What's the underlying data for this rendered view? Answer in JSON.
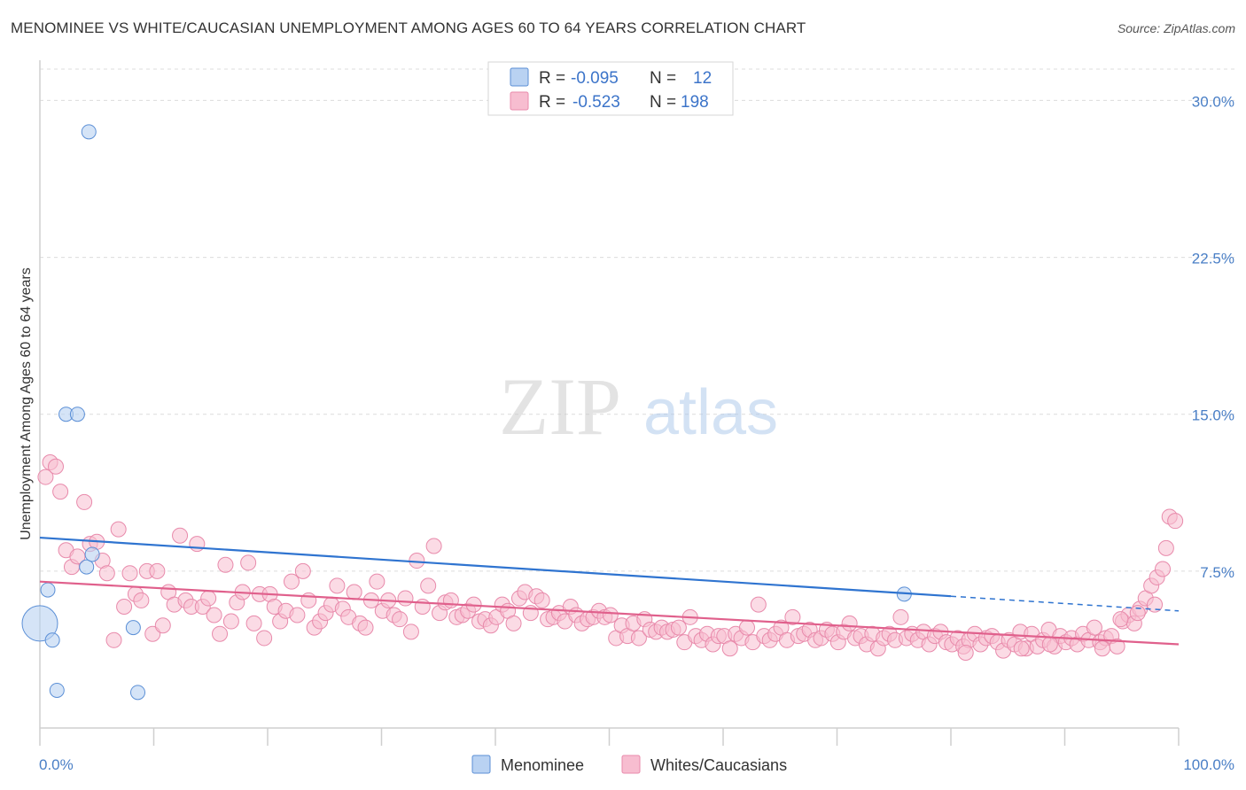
{
  "header": {
    "title": "MENOMINEE VS WHITE/CAUCASIAN UNEMPLOYMENT AMONG AGES 60 TO 64 YEARS CORRELATION CHART",
    "source": "Source: ZipAtlas.com"
  },
  "watermark": {
    "zip": "ZIP",
    "atlas": "atlas"
  },
  "legend": {
    "r_label": "R =",
    "n_label": "N =",
    "rows": [
      {
        "r": "-0.095",
        "n": "12"
      },
      {
        "r": "-0.523",
        "n": "198"
      }
    ]
  },
  "colors": {
    "menominee_fill": "#b9d2f2",
    "menominee_stroke": "#5b8fd6",
    "menominee_line": "#2f74d0",
    "white_fill": "#f7bdd0",
    "white_stroke": "#e88aab",
    "white_line": "#e0608c",
    "tick_text": "#4a7fc6"
  },
  "chart_data": {
    "type": "scatter",
    "title": "MENOMINEE VS WHITE/CAUCASIAN UNEMPLOYMENT AMONG AGES 60 TO 64 YEARS CORRELATION CHART",
    "xlabel": "",
    "ylabel": "Unemployment Among Ages 60 to 64 years",
    "xlim": [
      0,
      100
    ],
    "ylim": [
      0,
      31.5
    ],
    "x_tick_labels": [
      "0.0%",
      "100.0%"
    ],
    "y_ticks": [
      7.5,
      15.0,
      22.5,
      30.0
    ],
    "y_tick_labels": [
      "7.5%",
      "15.0%",
      "22.5%",
      "30.0%"
    ],
    "grid": true,
    "legend_position": "top-center",
    "series": [
      {
        "name": "Menominee",
        "r": -0.095,
        "n": 12,
        "trend": {
          "x": [
            0,
            80
          ],
          "y": [
            9.1,
            6.3
          ],
          "dashed_to": [
            100,
            5.6
          ]
        },
        "points": [
          [
            0.0,
            5.0,
            2.5
          ],
          [
            0.7,
            6.6,
            1
          ],
          [
            1.1,
            4.2,
            1
          ],
          [
            1.5,
            1.8,
            1
          ],
          [
            2.3,
            15.0,
            1
          ],
          [
            3.3,
            15.0,
            1
          ],
          [
            4.1,
            7.7,
            1
          ],
          [
            4.6,
            8.3,
            1
          ],
          [
            4.3,
            28.5,
            1
          ],
          [
            8.2,
            4.8,
            1
          ],
          [
            8.6,
            1.7,
            1
          ],
          [
            75.9,
            6.4,
            1
          ]
        ]
      },
      {
        "name": "Whites/Caucasians",
        "r": -0.523,
        "n": 198,
        "trend": {
          "x": [
            0,
            100
          ],
          "y": [
            7.0,
            4.0
          ]
        },
        "points": [
          [
            0.5,
            12.0
          ],
          [
            0.9,
            12.7
          ],
          [
            1.4,
            12.5
          ],
          [
            1.8,
            11.3
          ],
          [
            2.3,
            8.5
          ],
          [
            2.8,
            7.7
          ],
          [
            3.3,
            8.2
          ],
          [
            3.9,
            10.8
          ],
          [
            4.4,
            8.8
          ],
          [
            5.0,
            8.9
          ],
          [
            5.5,
            8.0
          ],
          [
            5.9,
            7.4
          ],
          [
            6.5,
            4.2
          ],
          [
            6.9,
            9.5
          ],
          [
            7.4,
            5.8
          ],
          [
            7.9,
            7.4
          ],
          [
            8.4,
            6.4
          ],
          [
            8.9,
            6.1
          ],
          [
            9.4,
            7.5
          ],
          [
            9.9,
            4.5
          ],
          [
            10.3,
            7.5
          ],
          [
            10.8,
            4.9
          ],
          [
            11.3,
            6.5
          ],
          [
            11.8,
            5.9
          ],
          [
            12.3,
            9.2
          ],
          [
            12.8,
            6.1
          ],
          [
            13.3,
            5.8
          ],
          [
            13.8,
            8.8
          ],
          [
            14.3,
            5.8
          ],
          [
            14.8,
            6.2
          ],
          [
            15.3,
            5.4
          ],
          [
            15.8,
            4.5
          ],
          [
            16.3,
            7.8
          ],
          [
            16.8,
            5.1
          ],
          [
            17.3,
            6.0
          ],
          [
            17.8,
            6.5
          ],
          [
            18.3,
            7.9
          ],
          [
            18.8,
            5.0
          ],
          [
            19.3,
            6.4
          ],
          [
            19.7,
            4.3
          ],
          [
            20.2,
            6.4
          ],
          [
            20.6,
            5.8
          ],
          [
            21.1,
            5.1
          ],
          [
            21.6,
            5.6
          ],
          [
            22.1,
            7.0
          ],
          [
            22.6,
            5.4
          ],
          [
            23.1,
            7.5
          ],
          [
            23.6,
            6.1
          ],
          [
            24.1,
            4.8
          ],
          [
            24.6,
            5.1
          ],
          [
            25.1,
            5.5
          ],
          [
            25.6,
            5.9
          ],
          [
            26.1,
            6.8
          ],
          [
            26.6,
            5.7
          ],
          [
            27.1,
            5.3
          ],
          [
            27.6,
            6.5
          ],
          [
            28.1,
            5.0
          ],
          [
            28.6,
            4.8
          ],
          [
            29.1,
            6.1
          ],
          [
            29.6,
            7.0
          ],
          [
            30.1,
            5.6
          ],
          [
            30.6,
            6.1
          ],
          [
            31.1,
            5.4
          ],
          [
            31.6,
            5.2
          ],
          [
            32.1,
            6.2
          ],
          [
            32.6,
            4.6
          ],
          [
            33.1,
            8.0
          ],
          [
            33.6,
            5.8
          ],
          [
            34.1,
            6.8
          ],
          [
            34.6,
            8.7
          ],
          [
            35.1,
            5.5
          ],
          [
            35.6,
            6.0
          ],
          [
            36.1,
            6.1
          ],
          [
            36.6,
            5.3
          ],
          [
            37.1,
            5.4
          ],
          [
            37.6,
            5.6
          ],
          [
            38.1,
            5.9
          ],
          [
            38.6,
            5.1
          ],
          [
            39.1,
            5.2
          ],
          [
            39.6,
            4.9
          ],
          [
            40.1,
            5.3
          ],
          [
            40.6,
            5.9
          ],
          [
            41.1,
            5.6
          ],
          [
            41.6,
            5.0
          ],
          [
            42.1,
            6.2
          ],
          [
            42.6,
            6.5
          ],
          [
            43.1,
            5.5
          ],
          [
            43.6,
            6.3
          ],
          [
            44.1,
            6.1
          ],
          [
            44.6,
            5.2
          ],
          [
            45.1,
            5.3
          ],
          [
            45.6,
            5.5
          ],
          [
            46.1,
            5.1
          ],
          [
            46.6,
            5.8
          ],
          [
            47.1,
            5.4
          ],
          [
            47.6,
            5.0
          ],
          [
            48.1,
            5.2
          ],
          [
            48.6,
            5.3
          ],
          [
            49.1,
            5.6
          ],
          [
            49.6,
            5.3
          ],
          [
            50.1,
            5.4
          ],
          [
            50.6,
            4.3
          ],
          [
            51.1,
            4.9
          ],
          [
            51.6,
            4.4
          ],
          [
            52.1,
            5.0
          ],
          [
            52.6,
            4.3
          ],
          [
            53.1,
            5.2
          ],
          [
            53.6,
            4.7
          ],
          [
            54.1,
            4.6
          ],
          [
            54.6,
            4.8
          ],
          [
            55.1,
            4.6
          ],
          [
            55.6,
            4.7
          ],
          [
            56.1,
            4.8
          ],
          [
            56.6,
            4.1
          ],
          [
            57.1,
            5.3
          ],
          [
            57.6,
            4.4
          ],
          [
            58.1,
            4.2
          ],
          [
            58.6,
            4.5
          ],
          [
            59.1,
            4.0
          ],
          [
            59.6,
            4.4
          ],
          [
            60.1,
            4.4
          ],
          [
            60.6,
            3.8
          ],
          [
            61.1,
            4.5
          ],
          [
            61.6,
            4.3
          ],
          [
            62.1,
            4.8
          ],
          [
            62.6,
            4.1
          ],
          [
            63.1,
            5.9
          ],
          [
            63.6,
            4.4
          ],
          [
            64.1,
            4.2
          ],
          [
            64.6,
            4.5
          ],
          [
            65.1,
            4.8
          ],
          [
            65.6,
            4.2
          ],
          [
            66.1,
            5.3
          ],
          [
            66.6,
            4.4
          ],
          [
            67.1,
            4.5
          ],
          [
            67.6,
            4.7
          ],
          [
            68.1,
            4.2
          ],
          [
            68.6,
            4.3
          ],
          [
            69.1,
            4.7
          ],
          [
            69.6,
            4.5
          ],
          [
            70.1,
            4.1
          ],
          [
            70.6,
            4.6
          ],
          [
            71.1,
            5.0
          ],
          [
            71.6,
            4.3
          ],
          [
            72.1,
            4.4
          ],
          [
            72.6,
            4.0
          ],
          [
            73.1,
            4.5
          ],
          [
            73.6,
            3.8
          ],
          [
            74.1,
            4.3
          ],
          [
            74.6,
            4.5
          ],
          [
            75.1,
            4.2
          ],
          [
            75.6,
            5.3
          ],
          [
            76.1,
            4.3
          ],
          [
            76.6,
            4.5
          ],
          [
            77.1,
            4.2
          ],
          [
            77.6,
            4.6
          ],
          [
            78.1,
            4.0
          ],
          [
            78.6,
            4.4
          ],
          [
            79.1,
            4.6
          ],
          [
            79.6,
            4.1
          ],
          [
            80.1,
            4.0
          ],
          [
            80.6,
            4.3
          ],
          [
            81.1,
            3.9
          ],
          [
            81.6,
            4.2
          ],
          [
            82.1,
            4.5
          ],
          [
            82.6,
            4.0
          ],
          [
            83.1,
            4.3
          ],
          [
            83.6,
            4.4
          ],
          [
            84.1,
            4.1
          ],
          [
            84.6,
            3.7
          ],
          [
            85.1,
            4.2
          ],
          [
            85.6,
            4.0
          ],
          [
            86.1,
            4.6
          ],
          [
            86.6,
            3.8
          ],
          [
            87.1,
            4.5
          ],
          [
            87.6,
            3.9
          ],
          [
            88.1,
            4.2
          ],
          [
            88.6,
            4.7
          ],
          [
            89.1,
            3.9
          ],
          [
            89.6,
            4.4
          ],
          [
            90.1,
            4.1
          ],
          [
            90.6,
            4.3
          ],
          [
            91.1,
            4.0
          ],
          [
            91.6,
            4.5
          ],
          [
            92.1,
            4.2
          ],
          [
            92.6,
            4.8
          ],
          [
            93.1,
            4.1
          ],
          [
            93.6,
            4.3
          ],
          [
            94.1,
            4.4
          ],
          [
            94.6,
            3.9
          ],
          [
            95.1,
            5.1
          ],
          [
            95.6,
            5.4
          ],
          [
            96.1,
            5.0
          ],
          [
            96.6,
            5.7
          ],
          [
            97.1,
            6.2
          ],
          [
            97.6,
            6.8
          ],
          [
            98.1,
            7.2
          ],
          [
            98.6,
            7.6
          ],
          [
            99.2,
            10.1
          ],
          [
            99.7,
            9.9
          ],
          [
            81.3,
            3.6
          ],
          [
            86.2,
            3.8
          ],
          [
            88.7,
            4.0
          ],
          [
            93.3,
            3.8
          ],
          [
            94.9,
            5.2
          ],
          [
            96.4,
            5.5
          ],
          [
            97.9,
            5.9
          ],
          [
            98.9,
            8.6
          ]
        ]
      }
    ]
  },
  "bottom_legend": [
    "Menominee",
    "Whites/Caucasians"
  ]
}
